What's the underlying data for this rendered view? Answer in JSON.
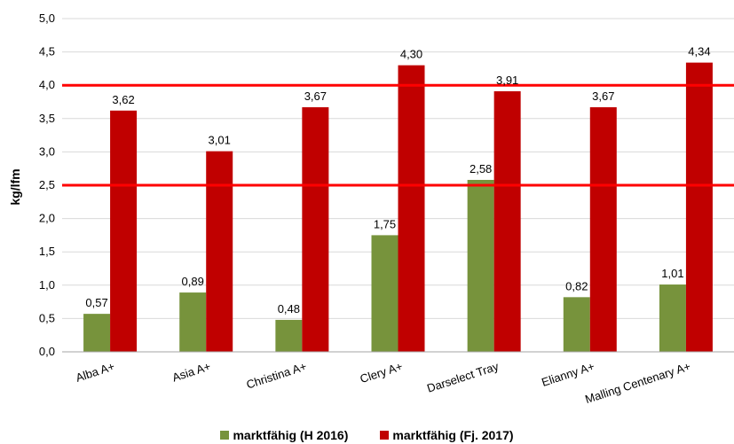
{
  "chart_data": {
    "type": "bar",
    "categories": [
      "Alba A+",
      "Asia A+",
      "Christina A+",
      "Clery A+",
      "Darselect Tray",
      "Elianny A+",
      "Malling Centenary A+"
    ],
    "series": [
      {
        "name": "marktfähig (H 2016)",
        "color": "#77933c",
        "values": [
          0.57,
          0.89,
          0.48,
          1.75,
          2.58,
          0.82,
          1.01
        ],
        "labels": [
          "0,57",
          "0,89",
          "0,48",
          "1,75",
          "2,58",
          "0,82",
          "1,01"
        ]
      },
      {
        "name": "marktfähig (Fj. 2017)",
        "color": "#c00000",
        "values": [
          3.62,
          3.01,
          3.67,
          4.3,
          3.91,
          3.67,
          4.34
        ],
        "labels": [
          "3,62",
          "3,01",
          "3,67",
          "4,30",
          "3,91",
          "3,67",
          "4,34"
        ]
      }
    ],
    "ylabel": "kg/lfm",
    "ylim": [
      0,
      5
    ],
    "yticks": [
      0,
      0.5,
      1,
      1.5,
      2,
      2.5,
      3,
      3.5,
      4,
      4.5,
      5
    ],
    "ytick_labels": [
      "0,0",
      "0,5",
      "1,0",
      "1,5",
      "2,0",
      "2,5",
      "3,0",
      "3,5",
      "4,0",
      "4,5",
      "5,0"
    ],
    "reference_lines": [
      {
        "y": 2.5,
        "color": "#ff0000"
      },
      {
        "y": 4.0,
        "color": "#ff0000"
      }
    ],
    "grid": true,
    "legend_position": "bottom"
  }
}
